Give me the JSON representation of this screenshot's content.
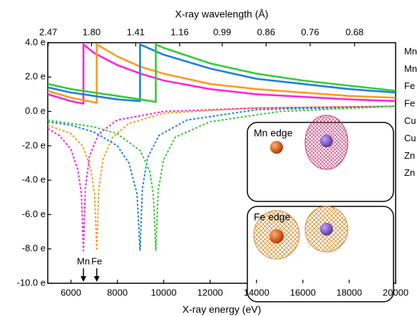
{
  "chart_data": {
    "type": "line",
    "xlabel": "X-ray energy (eV)",
    "x2label": "X-ray wavelength (Å)",
    "xlim": [
      5000,
      20000
    ],
    "xticks": [
      6000,
      8000,
      10000,
      12000,
      14000,
      16000,
      18000,
      20000
    ],
    "x2ticks": [
      {
        "value": 5020,
        "label": "2.47"
      },
      {
        "value": 6888,
        "label": "1.80"
      },
      {
        "value": 8793,
        "label": "1.41"
      },
      {
        "value": 10688,
        "label": "1.16"
      },
      {
        "value": 12523,
        "label": "0.99"
      },
      {
        "value": 14416,
        "label": "0.86"
      },
      {
        "value": 16313,
        "label": "0.76"
      },
      {
        "value": 18232,
        "label": "0.68"
      }
    ],
    "ylim": [
      -10,
      4
    ],
    "yticks": [
      {
        "value": -10,
        "label": "-10.0 e"
      },
      {
        "value": -8,
        "label": "-8.0 e"
      },
      {
        "value": -6,
        "label": "-6.0 e"
      },
      {
        "value": -4,
        "label": "-4.0 e"
      },
      {
        "value": -2,
        "label": "-2.0 e"
      },
      {
        "value": 0,
        "label": "0.0 e"
      },
      {
        "value": 2,
        "label": "2.0 e"
      },
      {
        "value": 4,
        "label": "4.0 e"
      }
    ],
    "legend": "right",
    "series": [
      {
        "name": "Mn",
        "color": "#ff22dd",
        "linestyle": "solid",
        "x": [
          5000,
          6000,
          6538,
          6539,
          7000,
          8000,
          9000,
          10000,
          12000,
          14000,
          16000,
          18000,
          20000
        ],
        "values": [
          1.0,
          0.6,
          0.45,
          3.9,
          3.4,
          2.7,
          2.2,
          1.8,
          1.3,
          1.0,
          0.85,
          0.7,
          0.6
        ]
      },
      {
        "name": "Mn",
        "color": "#ff22dd",
        "linestyle": "dashed",
        "x": [
          5000,
          5500,
          6000,
          6300,
          6450,
          6539,
          6620,
          6800,
          7200,
          8000,
          10000,
          14000,
          20000
        ],
        "values": [
          -1.0,
          -1.4,
          -2.2,
          -3.4,
          -4.8,
          -8.1,
          -4.5,
          -2.6,
          -1.3,
          -0.5,
          0.0,
          0.2,
          0.3
        ]
      },
      {
        "name": "Fe",
        "color": "#ff9a1a",
        "linestyle": "solid",
        "x": [
          5000,
          6000,
          7111,
          7112,
          8000,
          9000,
          10000,
          12000,
          14000,
          16000,
          18000,
          20000
        ],
        "values": [
          1.2,
          0.8,
          0.5,
          3.9,
          3.2,
          2.6,
          2.2,
          1.6,
          1.3,
          1.1,
          0.9,
          0.8
        ]
      },
      {
        "name": "Fe",
        "color": "#ff9a1a",
        "linestyle": "dashed",
        "x": [
          5000,
          6000,
          6500,
          6850,
          7020,
          7112,
          7200,
          7400,
          7800,
          8500,
          10000,
          14000,
          20000
        ],
        "values": [
          -0.8,
          -1.3,
          -2.0,
          -3.3,
          -4.8,
          -8.1,
          -4.5,
          -2.7,
          -1.5,
          -0.7,
          -0.1,
          0.2,
          0.3
        ]
      },
      {
        "name": "Cu",
        "color": "#1a7fe6",
        "linestyle": "solid",
        "x": [
          5000,
          6000,
          7000,
          8000,
          8978,
          8979,
          10000,
          12000,
          14000,
          16000,
          18000,
          20000
        ],
        "values": [
          1.4,
          1.1,
          0.9,
          0.7,
          0.6,
          3.9,
          3.3,
          2.5,
          1.9,
          1.6,
          1.3,
          1.1
        ]
      },
      {
        "name": "Cu",
        "color": "#1a7fe6",
        "linestyle": "dashed",
        "x": [
          5000,
          6000,
          7000,
          8000,
          8500,
          8850,
          8979,
          9080,
          9300,
          9800,
          11000,
          14000,
          20000
        ],
        "values": [
          -0.6,
          -0.8,
          -1.2,
          -2.0,
          -3.0,
          -4.8,
          -8.1,
          -4.5,
          -2.7,
          -1.4,
          -0.5,
          0.1,
          0.3
        ]
      },
      {
        "name": "Zn",
        "color": "#33cc33",
        "linestyle": "solid",
        "x": [
          5000,
          6000,
          7000,
          8000,
          9000,
          9658,
          9659,
          10000,
          12000,
          14000,
          16000,
          18000,
          20000
        ],
        "values": [
          1.6,
          1.3,
          1.1,
          0.9,
          0.7,
          0.55,
          3.9,
          3.7,
          2.8,
          2.2,
          1.8,
          1.5,
          1.2
        ]
      },
      {
        "name": "Zn",
        "color": "#33cc33",
        "linestyle": "dashed",
        "x": [
          5000,
          6000,
          7000,
          8000,
          9000,
          9400,
          9550,
          9659,
          9760,
          10000,
          10500,
          12000,
          15000,
          20000
        ],
        "values": [
          -0.5,
          -0.7,
          -0.9,
          -1.3,
          -2.3,
          -3.5,
          -4.8,
          -8.1,
          -4.6,
          -2.8,
          -1.5,
          -0.6,
          0.0,
          0.3
        ]
      }
    ],
    "annotations": [
      {
        "text": "Mn",
        "x": 6539
      },
      {
        "text": "Fe",
        "x": 7112
      }
    ],
    "insets": [
      "Mn edge",
      "Fe edge"
    ]
  }
}
